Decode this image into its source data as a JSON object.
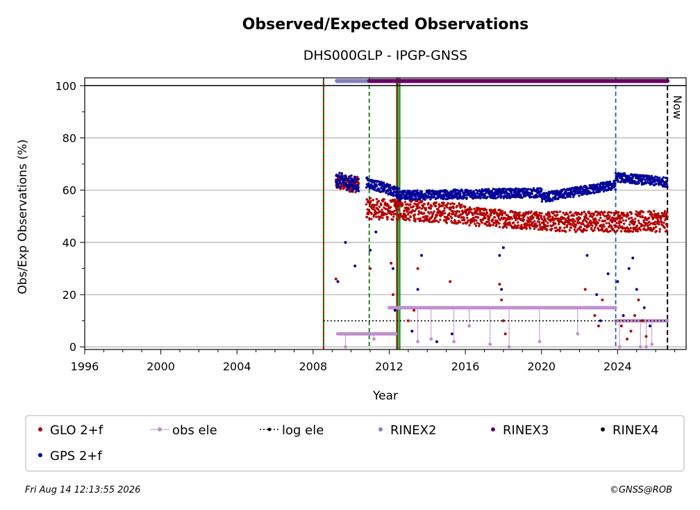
{
  "chart_data": {
    "type": "scatter",
    "title": "Observed/Expected Observations",
    "subtitle": "DHS000GLP - IPGP-GNSS",
    "xlabel": "Year",
    "ylabel": "Obs/Exp Observations (%)",
    "xlim": [
      1996,
      2027.6
    ],
    "ylim": [
      -1,
      103
    ],
    "xticks": [
      1996,
      2000,
      2004,
      2008,
      2012,
      2016,
      2020,
      2024
    ],
    "yticks": [
      0,
      20,
      40,
      60,
      80,
      100
    ],
    "grid": "horizontal",
    "now_label": "Now",
    "now_year": 2026.62,
    "vlines": [
      {
        "x": 2008.55,
        "color": "#cc0000",
        "style": "solid"
      },
      {
        "x": 2008.55,
        "color": "#008000",
        "style": "dashed"
      },
      {
        "x": 2010.95,
        "color": "#008000",
        "style": "dashed"
      },
      {
        "x": 2012.4,
        "color": "#cc0000",
        "style": "solid"
      },
      {
        "x": 2012.45,
        "color": "#008000",
        "style": "solid"
      },
      {
        "x": 2012.55,
        "color": "#008000",
        "style": "solid"
      },
      {
        "x": 2023.9,
        "color": "#1f5fa8",
        "style": "dashed"
      }
    ],
    "series": [
      {
        "name": "GLO 2+f",
        "color": "#b30000",
        "marker": "dot",
        "segments": [
          {
            "x0": 2009.2,
            "x1": 2010.4,
            "start": 63,
            "end": 62,
            "spread": 3
          },
          {
            "x0": 2010.8,
            "x1": 2016.0,
            "start": 53,
            "end": 51,
            "spread": 4
          },
          {
            "x0": 2016.0,
            "x1": 2020.5,
            "start": 50,
            "end": 48,
            "spread": 3.5
          },
          {
            "x0": 2020.5,
            "x1": 2026.62,
            "start": 48,
            "end": 48,
            "spread": 4
          }
        ],
        "outliers": [
          [
            2009.2,
            26
          ],
          [
            2011.0,
            30
          ],
          [
            2012.1,
            32
          ],
          [
            2012.2,
            20
          ],
          [
            2013.0,
            10
          ],
          [
            2013.3,
            14
          ],
          [
            2013.5,
            30
          ],
          [
            2015.2,
            25
          ],
          [
            2017.8,
            24
          ],
          [
            2017.9,
            18
          ],
          [
            2018.0,
            10
          ],
          [
            2018.1,
            5
          ],
          [
            2022.3,
            22
          ],
          [
            2022.8,
            12
          ],
          [
            2023.0,
            8
          ],
          [
            2023.2,
            18
          ],
          [
            2024.2,
            8
          ],
          [
            2024.5,
            3
          ],
          [
            2024.7,
            6
          ],
          [
            2024.9,
            12
          ],
          [
            2025.1,
            18
          ],
          [
            2025.3,
            10
          ],
          [
            2025.5,
            4
          ]
        ]
      },
      {
        "name": "GPS 2+f",
        "color": "#000099",
        "marker": "dot",
        "segments": [
          {
            "x0": 2009.2,
            "x1": 2010.4,
            "start": 64,
            "end": 62,
            "spread": 3
          },
          {
            "x0": 2010.8,
            "x1": 2012.5,
            "start": 63,
            "end": 59,
            "spread": 2
          },
          {
            "x0": 2012.5,
            "x1": 2020.0,
            "start": 58,
            "end": 59,
            "spread": 1.8
          },
          {
            "x0": 2020.0,
            "x1": 2023.9,
            "start": 57,
            "end": 62,
            "spread": 1.8
          },
          {
            "x0": 2023.9,
            "x1": 2026.62,
            "start": 65,
            "end": 63,
            "spread": 1.8
          }
        ],
        "outliers": [
          [
            2009.3,
            25
          ],
          [
            2009.7,
            40
          ],
          [
            2010.2,
            31
          ],
          [
            2011.0,
            37
          ],
          [
            2011.3,
            44
          ],
          [
            2012.2,
            30
          ],
          [
            2012.3,
            14
          ],
          [
            2013.2,
            6
          ],
          [
            2013.5,
            22
          ],
          [
            2013.7,
            35
          ],
          [
            2014.5,
            2
          ],
          [
            2015.3,
            5
          ],
          [
            2017.8,
            35
          ],
          [
            2017.9,
            22
          ],
          [
            2018.0,
            38
          ],
          [
            2022.4,
            35
          ],
          [
            2022.9,
            20
          ],
          [
            2023.1,
            10
          ],
          [
            2023.5,
            28
          ],
          [
            2024.0,
            25
          ],
          [
            2024.3,
            12
          ],
          [
            2024.6,
            30
          ],
          [
            2024.8,
            34
          ],
          [
            2025.0,
            22
          ],
          [
            2025.4,
            15
          ],
          [
            2025.7,
            8
          ]
        ]
      },
      {
        "name": "obs ele",
        "color": "#c090cc",
        "marker": "line-dot",
        "steps": [
          {
            "x0": 2009.3,
            "x1": 2010.9,
            "y": 5
          },
          {
            "x0": 2010.9,
            "x1": 2012.4,
            "y": 5
          },
          {
            "x0": 2012.0,
            "x1": 2023.9,
            "y": 15
          },
          {
            "x0": 2023.9,
            "x1": 2026.62,
            "y": 10
          }
        ],
        "drops": [
          [
            2009.7,
            0
          ],
          [
            2011.2,
            3
          ],
          [
            2013.5,
            2
          ],
          [
            2014.2,
            3
          ],
          [
            2015.4,
            2
          ],
          [
            2016.2,
            8
          ],
          [
            2017.3,
            1
          ],
          [
            2018.3,
            0
          ],
          [
            2019.9,
            2
          ],
          [
            2021.9,
            5
          ],
          [
            2024.1,
            0
          ],
          [
            2025.2,
            0
          ],
          [
            2025.5,
            0
          ],
          [
            2025.8,
            1
          ]
        ]
      },
      {
        "name": "log ele",
        "color": "#000000",
        "marker": "dotted-line",
        "steps": [
          {
            "x0": 2008.55,
            "x1": 2026.62,
            "y": 10
          }
        ]
      },
      {
        "name": "RINEX2",
        "color": "#8080c0",
        "marker": "bar",
        "ranges": [
          [
            2009.25,
            2010.85
          ]
        ],
        "y": 101.8
      },
      {
        "name": "RINEX3",
        "color": "#660066",
        "marker": "bar",
        "ranges": [
          [
            2010.95,
            2023.75
          ],
          [
            2023.85,
            2026.62
          ]
        ],
        "y": 101.8
      },
      {
        "name": "RINEX4",
        "color": "#1a0022",
        "marker": "bar",
        "ranges": [],
        "y": 101.8
      }
    ]
  },
  "footer": {
    "timestamp": "Fri Aug 14 12:13:55 2026",
    "credit": "©GNSS@ROB"
  }
}
